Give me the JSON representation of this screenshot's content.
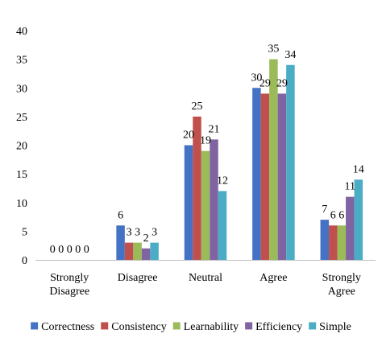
{
  "chart_data": {
    "type": "bar",
    "categories": [
      [
        "Strongly",
        "Disagree"
      ],
      [
        "Disagree"
      ],
      [
        "Neutral"
      ],
      [
        "Agree"
      ],
      [
        "Strongly",
        "Agree"
      ]
    ],
    "series": [
      {
        "name": "Correctness",
        "color": "#4472C4",
        "values": [
          0,
          6,
          20,
          30,
          7
        ]
      },
      {
        "name": "Consistency",
        "color": "#C0504D",
        "values": [
          0,
          3,
          25,
          29,
          6
        ]
      },
      {
        "name": "Learnability",
        "color": "#9BBB59",
        "values": [
          0,
          3,
          19,
          35,
          6
        ]
      },
      {
        "name": "Efficiency",
        "color": "#8064A2",
        "values": [
          0,
          2,
          21,
          29,
          11
        ]
      },
      {
        "name": "Simple",
        "color": "#4BACC6",
        "values": [
          0,
          3,
          12,
          34,
          14
        ]
      }
    ],
    "y_ticks": [
      0,
      5,
      10,
      15,
      20,
      25,
      30,
      35,
      40
    ],
    "ylim": [
      0,
      40
    ],
    "grid": false,
    "legend_position": "bottom",
    "data_labels": true
  }
}
